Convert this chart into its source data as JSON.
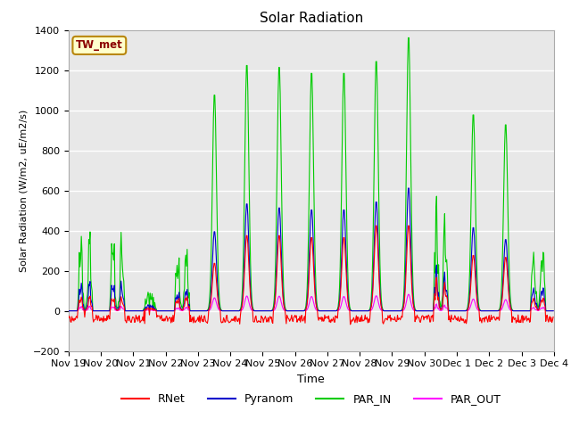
{
  "title": "Solar Radiation",
  "ylabel": "Solar Radiation (W/m2, uE/m2/s)",
  "xlabel": "Time",
  "ylim": [
    -200,
    1400
  ],
  "background_color": "#e8e8e8",
  "grid_color": "white",
  "site_label": "TW_met",
  "site_label_color": "#8b0000",
  "site_box_color": "#ffffcc",
  "site_box_edge": "#b8860b",
  "colors": {
    "RNet": "#ff0000",
    "Pyranom": "#0000cc",
    "PAR_IN": "#00cc00",
    "PAR_OUT": "#ff00ff"
  },
  "tick_labels": [
    "Nov 19",
    "Nov 20",
    "Nov 21",
    "Nov 22",
    "Nov 23",
    "Nov 24",
    "Nov 25",
    "Nov 26",
    "Nov 27",
    "Nov 28",
    "Nov 29",
    "Nov 30",
    "Dec 1",
    "Dec 2",
    "Dec 3",
    "Dec 4"
  ],
  "tick_positions": [
    0,
    48,
    96,
    144,
    192,
    240,
    288,
    336,
    384,
    432,
    480,
    528,
    576,
    624,
    672,
    720
  ]
}
